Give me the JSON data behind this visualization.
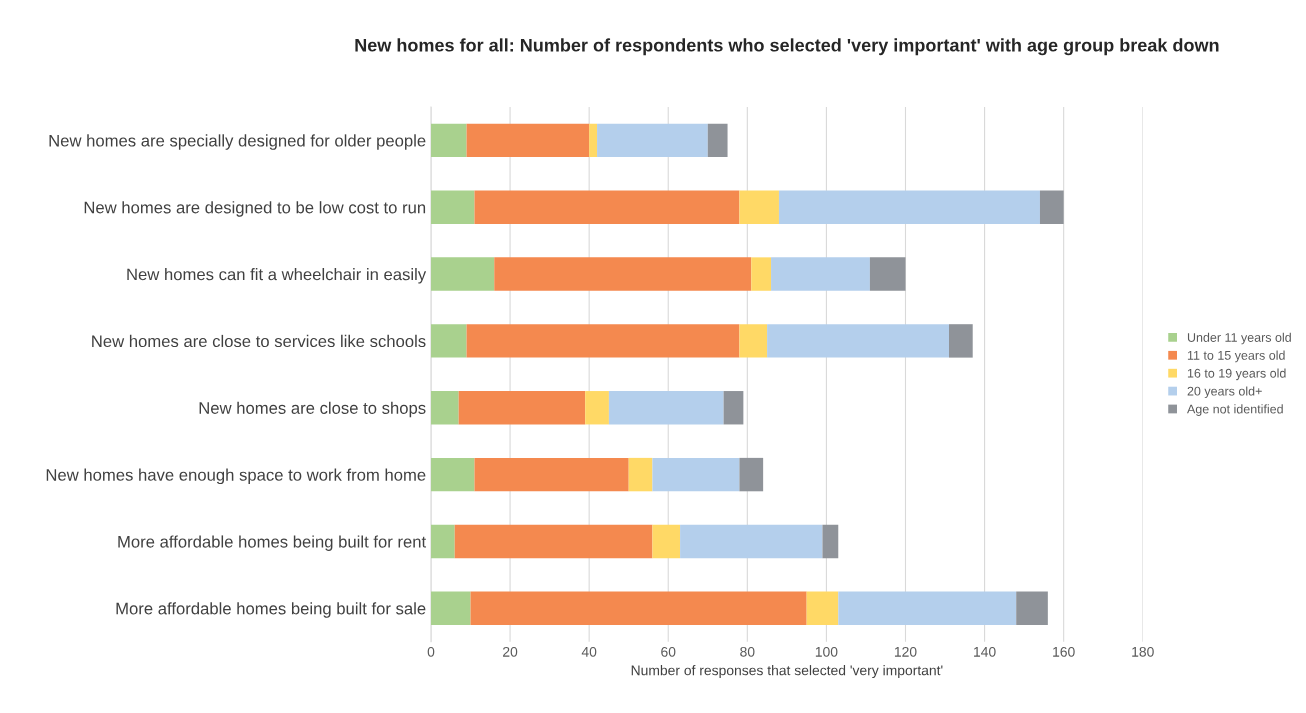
{
  "chart_data": {
    "type": "bar",
    "orientation": "horizontal",
    "stacked": true,
    "title": "New homes for all: Number of respondents who selected 'very important' with age group break down",
    "xlabel": "Number of responses that selected 'very important'",
    "categories": [
      "New homes are specially designed for older people",
      "New homes are designed to be low cost to run",
      "New homes can fit a wheelchair in easily",
      "New homes are close to services like schools",
      "New homes are close to shops",
      "New homes have enough space to work from home",
      "More affordable homes being built for rent",
      "More affordable homes being built for sale"
    ],
    "series": [
      {
        "name": "Under 11 years old",
        "color": "#a9d18e",
        "values": [
          9,
          11,
          16,
          9,
          7,
          11,
          6,
          10
        ]
      },
      {
        "name": "11 to 15 years old",
        "color": "#f4894f",
        "values": [
          31,
          67,
          65,
          69,
          32,
          39,
          50,
          85
        ]
      },
      {
        "name": "16 to 19 years old",
        "color": "#ffd966",
        "values": [
          2,
          10,
          5,
          7,
          6,
          6,
          7,
          8
        ]
      },
      {
        "name": "20 years old+",
        "color": "#b4cfec",
        "values": [
          28,
          66,
          25,
          46,
          29,
          22,
          36,
          45
        ]
      },
      {
        "name": "Age not identified",
        "color": "#8f9399",
        "values": [
          5,
          6,
          9,
          6,
          5,
          6,
          4,
          8
        ]
      }
    ],
    "xlim": [
      0,
      180
    ],
    "xticks": [
      0,
      20,
      40,
      60,
      80,
      100,
      120,
      140,
      160,
      180
    ],
    "grid": "x",
    "legend": "right"
  }
}
